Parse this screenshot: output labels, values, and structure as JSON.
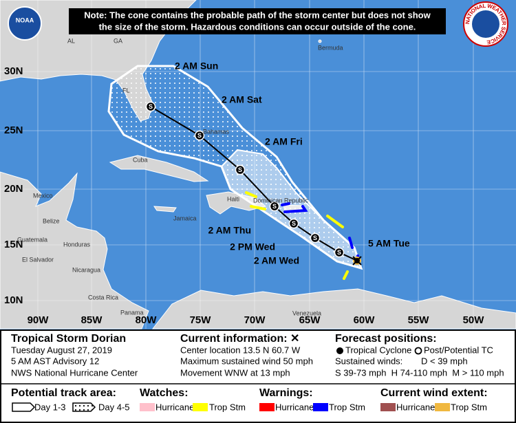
{
  "note": {
    "line1": "Note: The cone contains the probable path of the storm center but does not show",
    "line2": "the size of the storm. Hazardous conditions can occur outside of the cone."
  },
  "logos": {
    "left": "NOAA",
    "right": "NATIONAL WEATHER SERVICE"
  },
  "latitude_labels": [
    "30N",
    "25N",
    "20N",
    "15N",
    "10N"
  ],
  "longitude_labels": [
    "90W",
    "85W",
    "80W",
    "75W",
    "70W",
    "65W",
    "60W",
    "55W",
    "50W"
  ],
  "places": [
    "AL",
    "GA",
    "FL",
    "Bermuda",
    "Cuba",
    "Bahamas",
    "Mexico",
    "Belize",
    "Guatemala",
    "Honduras",
    "El Salvador",
    "Nicaragua",
    "Costa Rica",
    "Jamaica",
    "Haiti",
    "Dominican Republic",
    "Venezuela",
    "Panama"
  ],
  "track_labels": [
    "5 AM Tue",
    "2 AM Wed",
    "2 PM Wed",
    "2 AM Thu",
    "2 AM Fri",
    "2 AM Sat",
    "2 AM Sun"
  ],
  "track_symbols": [
    "S",
    "S",
    "S",
    "S",
    "S",
    "S",
    "S"
  ],
  "info": {
    "storm": {
      "title": "Tropical Storm Dorian",
      "lines": [
        "Tuesday August 27, 2019",
        "5 AM AST Advisory 12",
        "NWS National Hurricane Center"
      ]
    },
    "current": {
      "title": "Current information: ✕",
      "lines": [
        "Center location 13.5 N 60.7 W",
        "Maximum sustained wind 50 mph",
        "Movement WNW at 13 mph"
      ]
    },
    "forecast": {
      "title": "Forecast positions:",
      "tropical": "Tropical Cyclone",
      "post": "Post/Potential TC",
      "winds": "Sustained winds:",
      "d": "D < 39 mph",
      "scale": "S 39-73 mph  H 74-110 mph  M > 110 mph"
    }
  },
  "legend": {
    "track_area": {
      "title": "Potential track area:",
      "day13": "Day 1-3",
      "day45": "Day 4-5"
    },
    "watches": {
      "title": "Watches:",
      "hurricane": "Hurricane",
      "tropstm": "Trop Stm"
    },
    "warnings": {
      "title": "Warnings:",
      "hurricane": "Hurricane",
      "tropstm": "Trop Stm"
    },
    "wind_extent": {
      "title": "Current wind extent:",
      "hurricane": "Hurricane",
      "tropstm": "Trop Stm"
    }
  }
}
